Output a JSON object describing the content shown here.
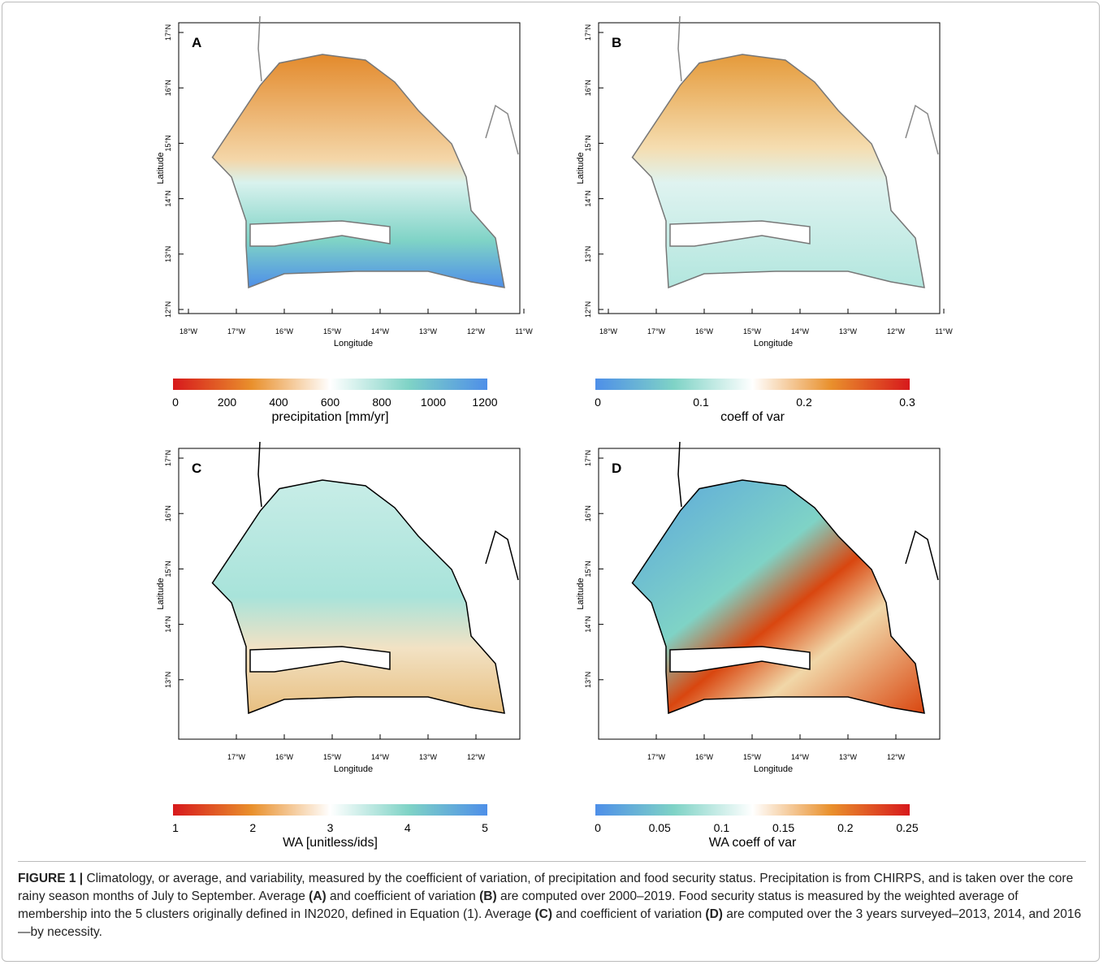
{
  "panels": [
    {
      "label": "A",
      "x_axis": {
        "title": "Longitude",
        "ticks": [
          "18°W",
          "17°W",
          "16°W",
          "15°W",
          "14°W",
          "13°W",
          "12°W",
          "11°W"
        ]
      },
      "y_axis": {
        "title": "Latitude",
        "ticks": [
          "17°N",
          "16°N",
          "15°N",
          "14°N",
          "13°N",
          "12°N"
        ]
      },
      "colorbar": {
        "title": "precipitation [mm/yr]",
        "ticks": [
          "0",
          "200",
          "400",
          "600",
          "800",
          "1000",
          "1200"
        ]
      }
    },
    {
      "label": "B",
      "x_axis": {
        "title": "Longitude",
        "ticks": [
          "18°W",
          "17°W",
          "16°W",
          "15°W",
          "14°W",
          "13°W",
          "12°W",
          "11°W"
        ]
      },
      "y_axis": {
        "title": "Latitude",
        "ticks": [
          "17°N",
          "16°N",
          "15°N",
          "14°N",
          "13°N",
          "12°N"
        ]
      },
      "colorbar": {
        "title": "coeff of var",
        "ticks": [
          "0",
          "0.1",
          "0.2",
          "0.3"
        ]
      }
    },
    {
      "label": "C",
      "x_axis": {
        "title": "Longitude",
        "ticks": [
          "17°W",
          "16°W",
          "15°W",
          "14°W",
          "13°W",
          "12°W"
        ]
      },
      "y_axis": {
        "title": "Latitude",
        "ticks": [
          "17°N",
          "16°N",
          "15°N",
          "14°N",
          "13°N"
        ]
      },
      "colorbar": {
        "title": "WA [unitless/ids]",
        "ticks": [
          "1",
          "2",
          "3",
          "4",
          "5"
        ]
      }
    },
    {
      "label": "D",
      "x_axis": {
        "title": "Longitude",
        "ticks": [
          "17°W",
          "16°W",
          "15°W",
          "14°W",
          "13°W",
          "12°W"
        ]
      },
      "y_axis": {
        "title": "Latitude",
        "ticks": [
          "17°N",
          "16°N",
          "15°N",
          "14°N",
          "13°N"
        ]
      },
      "colorbar": {
        "title": "WA coeff of var",
        "ticks": [
          "0",
          "0.05",
          "0.1",
          "0.15",
          "0.2",
          "0.25"
        ]
      }
    }
  ],
  "caption": [
    {
      "text": "FIGURE 1 |",
      "bold": true
    },
    {
      "text": " Climatology, or average, and variability, measured by the coefficient of variation, of precipitation and food security status. Precipitation is from CHIRPS, and is taken over the core rainy season months of July to September. Average ",
      "bold": false
    },
    {
      "text": "(A)",
      "bold": true
    },
    {
      "text": " and coefficient of variation ",
      "bold": false
    },
    {
      "text": "(B)",
      "bold": true
    },
    {
      "text": " are computed over 2000–2019. Food security status is measured by the weighted average of membership into the 5 clusters originally defined in IN2020, defined in Equation (1). Average ",
      "bold": false
    },
    {
      "text": "(C)",
      "bold": true
    },
    {
      "text": " and coefficient of variation ",
      "bold": false
    },
    {
      "text": "(D)",
      "bold": true
    },
    {
      "text": " are computed over the 3 years surveyed–2013, 2014, and 2016—by necessity.",
      "bold": false
    }
  ]
}
